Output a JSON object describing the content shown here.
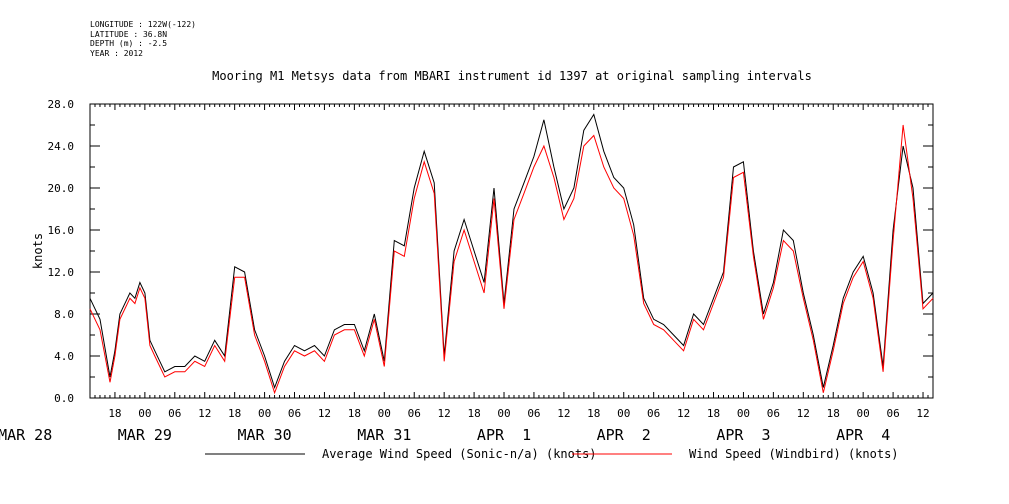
{
  "metadata": {
    "longitude": "LONGITUDE : 122W(-122)",
    "latitude": "LATITUDE : 36.8N",
    "depth": "DEPTH (m) : -2.5",
    "year": "YEAR : 2012"
  },
  "chart_data": {
    "type": "line",
    "title": "Mooring M1 Metsys data from MBARI instrument id 1397 at original sampling intervals",
    "ylabel": "knots",
    "ylim": [
      0,
      28
    ],
    "yticks": [
      "0.0",
      "4.0",
      "8.0",
      "12.0",
      "16.0",
      "20.0",
      "24.0",
      "28.0"
    ],
    "x_unit": "hours since MAR 28 00:00",
    "xlim": [
      13,
      182
    ],
    "x_tick_labels": [
      "18",
      "00",
      "06",
      "12",
      "18",
      "00",
      "06",
      "12",
      "18",
      "00",
      "06",
      "12",
      "18",
      "00",
      "06",
      "12",
      "18",
      "00",
      "06",
      "12",
      "18",
      "00",
      "06",
      "12",
      "18",
      "00",
      "06",
      "12"
    ],
    "date_labels": [
      "MAR 28",
      "MAR 29",
      "MAR 30",
      "MAR 31",
      "APR  1",
      "APR  2",
      "APR  3",
      "APR  4"
    ],
    "series": [
      {
        "name": "Average Wind Speed (Sonic-n/a) (knots)",
        "color": "#000000",
        "x": [
          13,
          15,
          17,
          18,
          19,
          21,
          22,
          23,
          24,
          25,
          26,
          28,
          30,
          32,
          34,
          36,
          38,
          40,
          42,
          44,
          46,
          48,
          50,
          52,
          54,
          56,
          58,
          60,
          62,
          64,
          66,
          68,
          70,
          72,
          74,
          76,
          78,
          80,
          82,
          84,
          86,
          88,
          90,
          92,
          94,
          96,
          98,
          100,
          102,
          104,
          106,
          108,
          110,
          112,
          114,
          116,
          118,
          120,
          122,
          124,
          126,
          128,
          130,
          132,
          134,
          136,
          138,
          140,
          142,
          144,
          146,
          148,
          150,
          152,
          154,
          156,
          158,
          160,
          162,
          164,
          166,
          168,
          170,
          172,
          174,
          176,
          178,
          180,
          182
        ],
        "y": [
          9.5,
          7.5,
          2.0,
          4.5,
          8.0,
          10.0,
          9.5,
          11.0,
          10.0,
          5.5,
          4.5,
          2.5,
          3.0,
          3.0,
          4.0,
          3.5,
          5.5,
          4.0,
          12.5,
          12.0,
          6.5,
          4.0,
          1.0,
          3.5,
          5.0,
          4.5,
          5.0,
          4.0,
          6.5,
          7.0,
          7.0,
          4.5,
          8.0,
          3.5,
          15.0,
          14.5,
          20.0,
          23.5,
          20.5,
          4.0,
          14.0,
          17.0,
          14.0,
          11.0,
          20.0,
          9.0,
          18.0,
          20.5,
          23.0,
          26.5,
          22.0,
          18.0,
          20.0,
          25.5,
          27.0,
          23.5,
          21.0,
          20.0,
          16.5,
          9.5,
          7.5,
          7.0,
          6.0,
          5.0,
          8.0,
          7.0,
          9.5,
          12.0,
          22.0,
          22.5,
          14.0,
          8.0,
          11.0,
          16.0,
          15.0,
          10.0,
          6.0,
          1.0,
          5.0,
          9.5,
          12.0,
          13.5,
          10.0,
          3.0,
          16.0,
          24.0,
          20.0,
          9.0,
          10.0
        ]
      },
      {
        "name": "Wind Speed (Windbird) (knots)",
        "color": "#ff0000",
        "x": [
          13,
          15,
          17,
          18,
          19,
          21,
          22,
          23,
          24,
          25,
          26,
          28,
          30,
          32,
          34,
          36,
          38,
          40,
          42,
          44,
          46,
          48,
          50,
          52,
          54,
          56,
          58,
          60,
          62,
          64,
          66,
          68,
          70,
          72,
          74,
          76,
          78,
          80,
          82,
          84,
          86,
          88,
          90,
          92,
          94,
          96,
          98,
          100,
          102,
          104,
          106,
          108,
          110,
          112,
          114,
          116,
          118,
          120,
          122,
          124,
          126,
          128,
          130,
          132,
          134,
          136,
          138,
          140,
          142,
          144,
          146,
          148,
          150,
          152,
          154,
          156,
          158,
          160,
          162,
          164,
          166,
          168,
          170,
          172,
          174,
          176,
          178,
          180,
          182
        ],
        "y": [
          8.5,
          6.5,
          1.5,
          4.0,
          7.5,
          9.5,
          9.0,
          10.5,
          9.5,
          5.0,
          4.0,
          2.0,
          2.5,
          2.5,
          3.5,
          3.0,
          5.0,
          3.5,
          11.5,
          11.5,
          6.0,
          3.5,
          0.5,
          3.0,
          4.5,
          4.0,
          4.5,
          3.5,
          6.0,
          6.5,
          6.5,
          4.0,
          7.5,
          3.0,
          14.0,
          13.5,
          19.0,
          22.5,
          19.5,
          3.5,
          13.0,
          16.0,
          13.0,
          10.0,
          19.0,
          8.5,
          17.0,
          19.5,
          22.0,
          24.0,
          21.0,
          17.0,
          19.0,
          24.0,
          25.0,
          22.0,
          20.0,
          19.0,
          15.5,
          9.0,
          7.0,
          6.5,
          5.5,
          4.5,
          7.5,
          6.5,
          9.0,
          11.5,
          21.0,
          21.5,
          13.5,
          7.5,
          10.5,
          15.0,
          14.0,
          9.5,
          5.5,
          0.5,
          4.5,
          9.0,
          11.5,
          13.0,
          9.5,
          2.5,
          15.0,
          26.0,
          19.0,
          8.5,
          9.5
        ]
      }
    ]
  }
}
